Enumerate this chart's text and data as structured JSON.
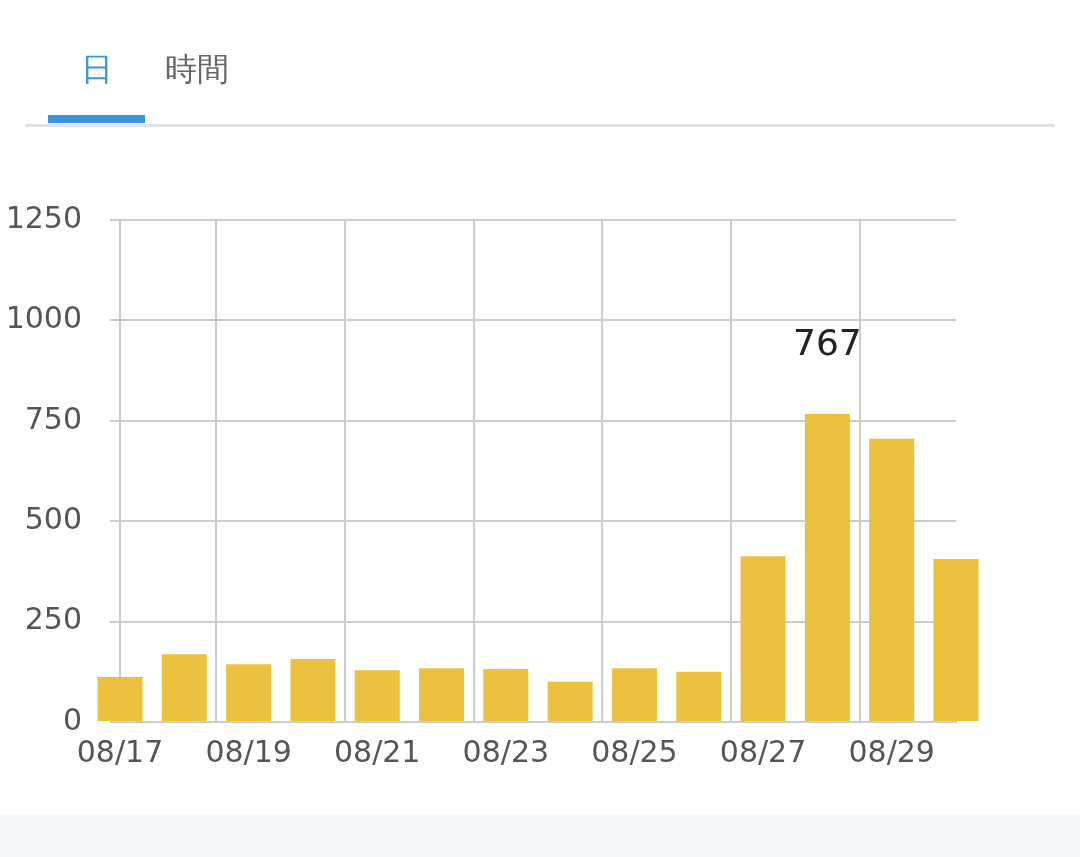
{
  "chart_data": {
    "type": "bar",
    "annotations": [
      "日",
      "時間"
    ],
    "categories": [
      "08/17",
      null,
      "08/19",
      null,
      "08/21",
      null,
      "08/23",
      null,
      "08/25",
      null,
      "08/27",
      null,
      "08/29",
      null
    ],
    "values": [
      112,
      169,
      144,
      157,
      129,
      134,
      132,
      100,
      134,
      125,
      413,
      767,
      705,
      406
    ],
    "value_labels": [
      null,
      null,
      null,
      null,
      null,
      null,
      null,
      null,
      null,
      null,
      null,
      "767",
      null,
      null
    ],
    "color": "#ebc140",
    "ylim": [
      0,
      1250
    ],
    "yticks": [
      0,
      250,
      500,
      750,
      1000,
      1250
    ],
    "grid": true
  }
}
